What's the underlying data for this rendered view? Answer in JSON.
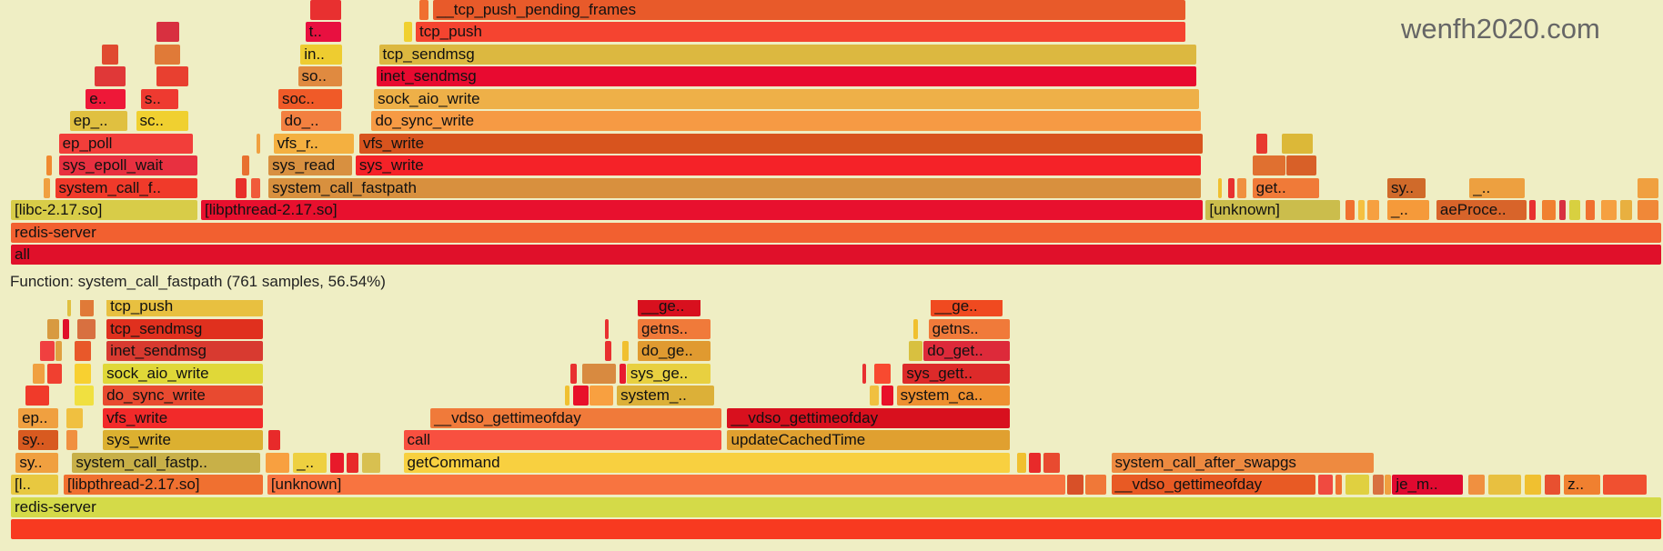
{
  "status_text": "Function: system_call_fastpath (761 samples, 56.54%)",
  "watermark": "wenfh2020.com",
  "chart_data": {
    "type": "flamegraph",
    "units": "samples",
    "total": 1346,
    "panels": [
      {
        "name": "top",
        "frames": [
          [
            0,
            0,
            1346,
            "#e0102a",
            "all"
          ],
          [
            1,
            0,
            1346,
            "#f26030",
            "redis-server"
          ],
          [
            2,
            0,
            153,
            "#d8cc48",
            "[libc-2.17.so]"
          ],
          [
            2,
            155,
            817,
            "#e8102e",
            "[libpthread-2.17.so]"
          ],
          [
            2,
            974,
            110,
            "#cbbd4c",
            "[unknown]"
          ],
          [
            2,
            1088,
            8,
            "#f07030",
            ""
          ],
          [
            2,
            1098,
            6,
            "#f5c040",
            ""
          ],
          [
            2,
            1106,
            10,
            "#f6a040",
            ""
          ],
          [
            2,
            1122,
            35,
            "#f59a3a",
            "_.."
          ],
          [
            2,
            1162,
            74,
            "#d8642a",
            "aeProce.."
          ],
          [
            2,
            1238,
            6,
            "#e83030",
            ""
          ],
          [
            2,
            1248,
            12,
            "#f08030",
            ""
          ],
          [
            2,
            1262,
            6,
            "#d83040",
            ""
          ],
          [
            2,
            1270,
            10,
            "#d8d040",
            ""
          ],
          [
            2,
            1284,
            8,
            "#f07030",
            ""
          ],
          [
            2,
            1296,
            14,
            "#f5a040",
            ""
          ],
          [
            2,
            1312,
            10,
            "#e8b040",
            ""
          ],
          [
            2,
            1326,
            18,
            "#f08838",
            ""
          ],
          [
            3,
            27,
            6,
            "#f0a040",
            ""
          ],
          [
            3,
            36,
            117,
            "#f03a2a",
            "system_call_f.."
          ],
          [
            3,
            183,
            10,
            "#e8302a",
            ""
          ],
          [
            3,
            196,
            8,
            "#f05a3a",
            ""
          ],
          [
            3,
            210,
            761,
            "#d8903e",
            "system_call_fastpath"
          ],
          [
            3,
            984,
            4,
            "#f0c030",
            ""
          ],
          [
            3,
            992,
            6,
            "#e83030",
            ""
          ],
          [
            3,
            1000,
            8,
            "#f09040",
            ""
          ],
          [
            3,
            1012,
            55,
            "#f07a38",
            "get.."
          ],
          [
            3,
            1122,
            32,
            "#d06a2a",
            "sy.."
          ],
          [
            3,
            1189,
            46,
            "#eda040",
            "_.."
          ],
          [
            3,
            1326,
            18,
            "#f0a040",
            ""
          ],
          [
            4,
            29,
            5,
            "#f08a30",
            ""
          ],
          [
            4,
            39,
            114,
            "#e83040",
            "sys_epoll_wait"
          ],
          [
            4,
            188,
            7,
            "#e87030",
            ""
          ],
          [
            4,
            210,
            69,
            "#d89040",
            "sys_read"
          ],
          [
            4,
            281,
            690,
            "#f52228",
            "sys_write"
          ],
          [
            4,
            1012,
            28,
            "#e07030",
            ""
          ],
          [
            4,
            1040,
            25,
            "#d86028",
            ""
          ],
          [
            5,
            39,
            110,
            "#f23e3a",
            "ep_poll"
          ],
          [
            5,
            200,
            4,
            "#f0a040",
            ""
          ],
          [
            5,
            214,
            66,
            "#f4b040",
            "vfs_r.."
          ],
          [
            5,
            284,
            688,
            "#d8541e",
            "vfs_write"
          ],
          [
            5,
            1015,
            10,
            "#e83a30",
            ""
          ],
          [
            5,
            1036,
            26,
            "#dcb838",
            ""
          ],
          [
            6,
            48,
            48,
            "#e0c040",
            "ep_.."
          ],
          [
            6,
            102,
            43,
            "#f0d030",
            "sc.."
          ],
          [
            6,
            220,
            50,
            "#f28040",
            "do_.."
          ],
          [
            6,
            294,
            677,
            "#f69a44",
            "do_sync_write"
          ],
          [
            7,
            61,
            33,
            "#ee1838",
            "e.."
          ],
          [
            7,
            106,
            31,
            "#ee3a30",
            "s.."
          ],
          [
            7,
            218,
            53,
            "#f05a28",
            "soc.."
          ],
          [
            7,
            296,
            673,
            "#eeb048",
            "sock_aio_write"
          ],
          [
            8,
            68,
            26,
            "#e03838",
            ""
          ],
          [
            8,
            119,
            26,
            "#e84030",
            ""
          ],
          [
            8,
            234,
            37,
            "#e08a40",
            "so.."
          ],
          [
            8,
            298,
            669,
            "#e80a30",
            "inet_sendmsg"
          ],
          [
            9,
            74,
            14,
            "#e04a30",
            ""
          ],
          [
            9,
            117,
            22,
            "#e07a38",
            ""
          ],
          [
            9,
            236,
            35,
            "#eecc30",
            "in.."
          ],
          [
            9,
            300,
            667,
            "#dcb840",
            "tcp_sendmsg"
          ],
          [
            10,
            119,
            19,
            "#d83040",
            ""
          ],
          [
            10,
            240,
            30,
            "#e81040",
            "t.."
          ],
          [
            10,
            320,
            8,
            "#f0d030",
            ""
          ],
          [
            10,
            330,
            628,
            "#f54430",
            "tcp_push"
          ],
          [
            11,
            244,
            26,
            "#e83030",
            ""
          ],
          [
            11,
            333,
            8,
            "#f07030",
            ""
          ],
          [
            11,
            344,
            614,
            "#e85a2a",
            "__tcp_push_pending_frames"
          ]
        ]
      },
      {
        "name": "bottom",
        "frames": [
          [
            0,
            0,
            1346,
            "#f83a20",
            ""
          ],
          [
            1,
            0,
            1346,
            "#d4da48",
            "redis-server"
          ],
          [
            2,
            0,
            39,
            "#e8c840",
            "[l.."
          ],
          [
            2,
            43,
            163,
            "#f07030",
            "[libpthread-2.17.so]"
          ],
          [
            2,
            209,
            651,
            "#f87440",
            "[unknown]"
          ],
          [
            2,
            861,
            14,
            "#d85028",
            ""
          ],
          [
            2,
            876,
            18,
            "#f07838",
            ""
          ],
          [
            2,
            897,
            167,
            "#e85a24",
            "__vdso_gettimeofday"
          ],
          [
            2,
            1066,
            12,
            "#f04a40",
            ""
          ],
          [
            2,
            1080,
            6,
            "#f07030",
            ""
          ],
          [
            2,
            1088,
            20,
            "#e0d040",
            ""
          ],
          [
            2,
            1110,
            10,
            "#d87040",
            ""
          ],
          [
            2,
            1120,
            6,
            "#f0a040",
            ""
          ],
          [
            2,
            1126,
            58,
            "#e00a30",
            "je_m.."
          ],
          [
            2,
            1188,
            14,
            "#f09040",
            ""
          ],
          [
            2,
            1204,
            28,
            "#e8c040",
            ""
          ],
          [
            2,
            1234,
            14,
            "#f0c030",
            ""
          ],
          [
            2,
            1250,
            14,
            "#e85030",
            ""
          ],
          [
            2,
            1266,
            30,
            "#f08030",
            "z.."
          ],
          [
            2,
            1298,
            36,
            "#f05030",
            ""
          ],
          [
            3,
            4,
            35,
            "#f0a040",
            "sy.."
          ],
          [
            3,
            50,
            154,
            "#c8b048",
            "system_call_fastp.."
          ],
          [
            3,
            208,
            20,
            "#f8a040",
            ""
          ],
          [
            3,
            230,
            28,
            "#eed040",
            "_.."
          ],
          [
            3,
            260,
            12,
            "#e81a2a",
            ""
          ],
          [
            3,
            274,
            10,
            "#e82a2a",
            ""
          ],
          [
            3,
            286,
            16,
            "#d8c050",
            ""
          ],
          [
            3,
            320,
            495,
            "#f8d040",
            "getCommand"
          ],
          [
            3,
            820,
            8,
            "#f0c030",
            ""
          ],
          [
            3,
            830,
            10,
            "#e82a2a",
            ""
          ],
          [
            3,
            842,
            14,
            "#e84a30",
            ""
          ],
          [
            3,
            897,
            215,
            "#ee8a40",
            "system_call_after_swapgs"
          ],
          [
            4,
            6,
            33,
            "#d85a20",
            "sy.."
          ],
          [
            4,
            45,
            10,
            "#f09040",
            ""
          ],
          [
            4,
            75,
            131,
            "#dcb030",
            "sys_write"
          ],
          [
            4,
            210,
            10,
            "#e82a2a",
            ""
          ],
          [
            4,
            320,
            260,
            "#f85040",
            "call"
          ],
          [
            4,
            584,
            231,
            "#e0a030",
            "updateCachedTime"
          ],
          [
            5,
            6,
            33,
            "#f0a040",
            "ep.."
          ],
          [
            5,
            45,
            14,
            "#f0c040",
            ""
          ],
          [
            5,
            75,
            131,
            "#f22a2a",
            "vfs_write"
          ],
          [
            5,
            342,
            238,
            "#f07a3a",
            "__vdso_gettimeofday"
          ],
          [
            5,
            584,
            231,
            "#d8101e",
            "__vdso_gettimeofday"
          ],
          [
            6,
            12,
            20,
            "#f03a2a",
            ""
          ],
          [
            6,
            52,
            16,
            "#f0e040",
            ""
          ],
          [
            6,
            75,
            131,
            "#e84a30",
            "do_sync_write"
          ],
          [
            6,
            452,
            4,
            "#f0c030",
            ""
          ],
          [
            6,
            458,
            14,
            "#e8102a",
            ""
          ],
          [
            6,
            472,
            20,
            "#f8a040",
            ""
          ],
          [
            6,
            494,
            80,
            "#dcb038",
            "system_.."
          ],
          [
            6,
            700,
            8,
            "#f0c040",
            ""
          ],
          [
            6,
            710,
            10,
            "#e8102a",
            ""
          ],
          [
            6,
            722,
            93,
            "#ee9030",
            "system_ca.."
          ],
          [
            7,
            18,
            10,
            "#f0a040",
            ""
          ],
          [
            7,
            30,
            12,
            "#f04030",
            ""
          ],
          [
            7,
            52,
            14,
            "#f8d030",
            ""
          ],
          [
            7,
            75,
            131,
            "#e0d838",
            "sock_aio_write"
          ],
          [
            7,
            456,
            6,
            "#e83030",
            ""
          ],
          [
            7,
            466,
            28,
            "#d88a40",
            ""
          ],
          [
            7,
            496,
            6,
            "#e81a30",
            ""
          ],
          [
            7,
            502,
            69,
            "#e8d040",
            "sys_ge.."
          ],
          [
            7,
            694,
            4,
            "#e83030",
            ""
          ],
          [
            7,
            704,
            14,
            "#f84a30",
            ""
          ],
          [
            7,
            727,
            88,
            "#dd2a2a",
            "sys_gett.."
          ],
          [
            8,
            24,
            12,
            "#f04040",
            ""
          ],
          [
            8,
            36,
            6,
            "#e0a040",
            ""
          ],
          [
            8,
            52,
            14,
            "#e8582a",
            ""
          ],
          [
            8,
            78,
            128,
            "#d83a30",
            "inet_sendmsg"
          ],
          [
            8,
            484,
            6,
            "#e83030",
            ""
          ],
          [
            8,
            498,
            6,
            "#f0c030",
            ""
          ],
          [
            8,
            511,
            60,
            "#e09a30",
            "do_ge.."
          ],
          [
            8,
            732,
            12,
            "#d8c040",
            ""
          ],
          [
            8,
            744,
            71,
            "#dd2a3a",
            "do_get.."
          ],
          [
            9,
            30,
            10,
            "#d89a40",
            ""
          ],
          [
            9,
            42,
            6,
            "#e0102a",
            ""
          ],
          [
            9,
            54,
            16,
            "#d87040",
            ""
          ],
          [
            9,
            78,
            128,
            "#e0301e",
            "tcp_sendmsg"
          ],
          [
            9,
            484,
            4,
            "#e83030",
            ""
          ],
          [
            9,
            511,
            60,
            "#f07a3a",
            "getns.."
          ],
          [
            9,
            736,
            4,
            "#f0c030",
            ""
          ],
          [
            9,
            748,
            67,
            "#f07a3a",
            "getns.."
          ],
          [
            10,
            46,
            4,
            "#e0c040",
            ""
          ],
          [
            10,
            56,
            12,
            "#e07a38",
            ""
          ],
          [
            10,
            78,
            128,
            "#e8c040",
            "tcp_push"
          ],
          [
            10,
            511,
            52,
            "#d8101e",
            "__ge.."
          ],
          [
            10,
            750,
            59,
            "#f04a20",
            "__ge.."
          ]
        ]
      }
    ]
  }
}
